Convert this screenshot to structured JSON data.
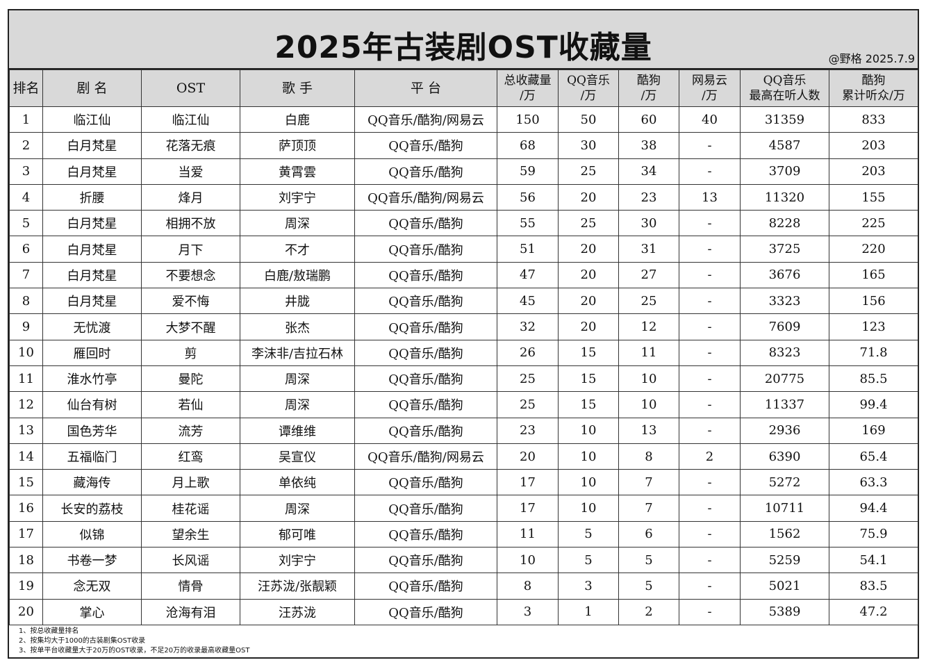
{
  "title": "2025年古装剧OST收藏量",
  "credit": "@野格 2025.7.9",
  "headers": [
    {
      "line1": "排名",
      "line2": ""
    },
    {
      "line1": "剧 名",
      "line2": ""
    },
    {
      "line1": "OST",
      "line2": ""
    },
    {
      "line1": "歌 手",
      "line2": ""
    },
    {
      "line1": "平 台",
      "line2": ""
    },
    {
      "line1": "总收藏量",
      "line2": "/万"
    },
    {
      "line1": "QQ音乐",
      "line2": "/万"
    },
    {
      "line1": "酷狗",
      "line2": "/万"
    },
    {
      "line1": "网易云",
      "line2": "/万"
    },
    {
      "line1": "QQ音乐",
      "line2": "最高在听人数"
    },
    {
      "line1": "酷狗",
      "line2": "累计听众/万"
    }
  ],
  "rows": [
    [
      "1",
      "临江仙",
      "临江仙",
      "白鹿",
      "QQ音乐/酷狗/网易云",
      "150",
      "50",
      "60",
      "40",
      "31359",
      "833"
    ],
    [
      "2",
      "白月梵星",
      "花落无痕",
      "萨顶顶",
      "QQ音乐/酷狗",
      "68",
      "30",
      "38",
      "-",
      "4587",
      "203"
    ],
    [
      "3",
      "白月梵星",
      "当爱",
      "黄霄雲",
      "QQ音乐/酷狗",
      "59",
      "25",
      "34",
      "-",
      "3709",
      "203"
    ],
    [
      "4",
      "折腰",
      "烽月",
      "刘宇宁",
      "QQ音乐/酷狗/网易云",
      "56",
      "20",
      "23",
      "13",
      "11320",
      "155"
    ],
    [
      "5",
      "白月梵星",
      "相拥不放",
      "周深",
      "QQ音乐/酷狗",
      "55",
      "25",
      "30",
      "-",
      "8228",
      "225"
    ],
    [
      "6",
      "白月梵星",
      "月下",
      "不才",
      "QQ音乐/酷狗",
      "51",
      "20",
      "31",
      "-",
      "3725",
      "220"
    ],
    [
      "7",
      "白月梵星",
      "不要想念",
      "白鹿/敖瑞鹏",
      "QQ音乐/酷狗",
      "47",
      "20",
      "27",
      "-",
      "3676",
      "165"
    ],
    [
      "8",
      "白月梵星",
      "爱不悔",
      "井胧",
      "QQ音乐/酷狗",
      "45",
      "20",
      "25",
      "-",
      "3323",
      "156"
    ],
    [
      "9",
      "无忧渡",
      "大梦不醒",
      "张杰",
      "QQ音乐/酷狗",
      "32",
      "20",
      "12",
      "-",
      "7609",
      "123"
    ],
    [
      "10",
      "雁回时",
      "剪",
      "李沫非/吉拉石林",
      "QQ音乐/酷狗",
      "26",
      "15",
      "11",
      "-",
      "8323",
      "71.8"
    ],
    [
      "11",
      "淮水竹亭",
      "曼陀",
      "周深",
      "QQ音乐/酷狗",
      "25",
      "15",
      "10",
      "-",
      "20775",
      "85.5"
    ],
    [
      "12",
      "仙台有树",
      "若仙",
      "周深",
      "QQ音乐/酷狗",
      "25",
      "15",
      "10",
      "-",
      "11337",
      "99.4"
    ],
    [
      "13",
      "国色芳华",
      "流芳",
      "谭维维",
      "QQ音乐/酷狗",
      "23",
      "10",
      "13",
      "-",
      "2936",
      "169"
    ],
    [
      "14",
      "五福临门",
      "红鸾",
      "吴宣仪",
      "QQ音乐/酷狗/网易云",
      "20",
      "10",
      "8",
      "2",
      "6390",
      "65.4"
    ],
    [
      "15",
      "藏海传",
      "月上歌",
      "单依纯",
      "QQ音乐/酷狗",
      "17",
      "10",
      "7",
      "-",
      "5272",
      "63.3"
    ],
    [
      "16",
      "长安的荔枝",
      "桂花谣",
      "周深",
      "QQ音乐/酷狗",
      "17",
      "10",
      "7",
      "-",
      "10711",
      "94.4"
    ],
    [
      "17",
      "似锦",
      "望余生",
      "郁可唯",
      "QQ音乐/酷狗",
      "11",
      "5",
      "6",
      "-",
      "1562",
      "75.9"
    ],
    [
      "18",
      "书卷一梦",
      "长风谣",
      "刘宇宁",
      "QQ音乐/酷狗",
      "10",
      "5",
      "5",
      "-",
      "5259",
      "54.1"
    ],
    [
      "19",
      "念无双",
      "情骨",
      "汪苏泷/张靓颖",
      "QQ音乐/酷狗",
      "8",
      "3",
      "5",
      "-",
      "5021",
      "83.5"
    ],
    [
      "20",
      "掌心",
      "沧海有泪",
      "汪苏泷",
      "QQ音乐/酷狗",
      "3",
      "1",
      "2",
      "-",
      "5389",
      "47.2"
    ]
  ],
  "notes": [
    "1、按总收藏量排名",
    "2、按集均大于1000的古装剧集OST收录",
    "3、按单平台收藏量大于20万的OST收录，不足20万的收录最高收藏量OST"
  ]
}
